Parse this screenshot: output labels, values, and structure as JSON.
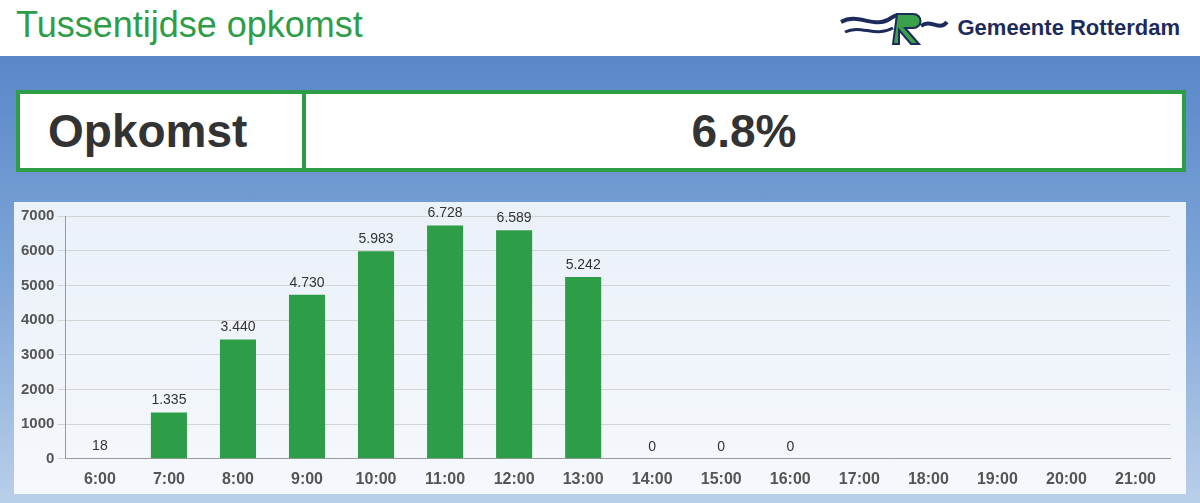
{
  "header": {
    "title": "Tussentijdse opkomst",
    "organization": "Gemeente Rotterdam"
  },
  "summary": {
    "label": "Opkomst",
    "value": "6.8%"
  },
  "chart_data": {
    "type": "bar",
    "categories": [
      "6:00",
      "7:00",
      "8:00",
      "9:00",
      "10:00",
      "11:00",
      "12:00",
      "13:00",
      "14:00",
      "15:00",
      "16:00",
      "17:00",
      "18:00",
      "19:00",
      "20:00",
      "21:00"
    ],
    "values": [
      18,
      1335,
      3440,
      4730,
      5983,
      6728,
      6589,
      5242,
      0,
      0,
      0,
      null,
      null,
      null,
      null,
      null
    ],
    "value_labels": [
      "18",
      "1.335",
      "3.440",
      "4.730",
      "5.983",
      "6.728",
      "6.589",
      "5.242",
      "0",
      "0",
      "0",
      null,
      null,
      null,
      null,
      null
    ],
    "color": "#2e9d47",
    "ylim": [
      0,
      7000
    ],
    "yticks": [
      0,
      1000,
      2000,
      3000,
      4000,
      5000,
      6000,
      7000
    ],
    "grid": true,
    "data_labels": true
  }
}
